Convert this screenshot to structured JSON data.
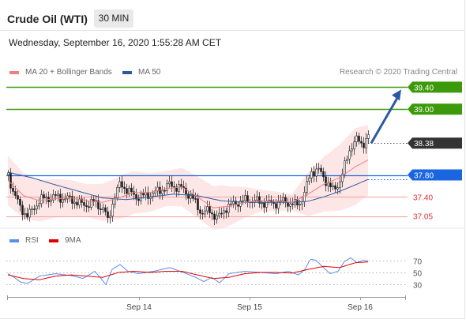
{
  "header": {
    "title": "Crude Oil (WTI)",
    "timeframe": "30 MIN",
    "datetime": "Wednesday, September 16, 2020 1:55:28 AM CET"
  },
  "legend": {
    "items": [
      {
        "label": "MA 20 + Bollinger Bands",
        "color": "#f08080"
      },
      {
        "label": "MA 50",
        "color": "#2c5aa0"
      }
    ],
    "credit": "Research © 2020 Trading Central"
  },
  "rsi_legend": {
    "items": [
      {
        "label": "RSI",
        "color": "#5b8def"
      },
      {
        "label": "9MA",
        "color": "#e00000"
      }
    ]
  },
  "chart_data": {
    "type": "line",
    "levels": [
      {
        "value": 39.4,
        "label": "39.40",
        "color": "#3c9a0a",
        "style": "badge"
      },
      {
        "value": 39.0,
        "label": "39.00",
        "color": "#3c9a0a",
        "style": "badge"
      },
      {
        "value": 38.38,
        "label": "38.38",
        "color": "#333333",
        "style": "current"
      },
      {
        "value": 37.8,
        "label": "37.80",
        "color": "#1a66e0",
        "style": "badge"
      },
      {
        "value": 37.4,
        "label": "37.40",
        "color": "#e03030",
        "style": "text"
      },
      {
        "value": 37.05,
        "label": "37.05",
        "color": "#e03030",
        "style": "text"
      }
    ],
    "price_range": [
      36.9,
      39.55
    ],
    "x_ticks": [
      "Sep 14",
      "Sep 15",
      "Sep 16"
    ],
    "price_key": [
      [
        0,
        37.8
      ],
      [
        5,
        37.55
      ],
      [
        15,
        37.2
      ],
      [
        25,
        37.05
      ],
      [
        40,
        37.35
      ],
      [
        60,
        37.4
      ],
      [
        80,
        37.35
      ],
      [
        95,
        37.25
      ],
      [
        110,
        37.3
      ],
      [
        122,
        37.15
      ],
      [
        126,
        36.95
      ],
      [
        133,
        37.35
      ],
      [
        142,
        37.65
      ],
      [
        152,
        37.5
      ],
      [
        162,
        37.4
      ],
      [
        175,
        37.42
      ],
      [
        190,
        37.5
      ],
      [
        205,
        37.62
      ],
      [
        220,
        37.55
      ],
      [
        232,
        37.4
      ],
      [
        245,
        37.1
      ],
      [
        255,
        37.15
      ],
      [
        265,
        37.0
      ],
      [
        275,
        37.2
      ],
      [
        290,
        37.3
      ],
      [
        305,
        37.35
      ],
      [
        320,
        37.3
      ],
      [
        335,
        37.28
      ],
      [
        350,
        37.32
      ],
      [
        362,
        37.25
      ],
      [
        370,
        37.3
      ],
      [
        377,
        37.55
      ],
      [
        383,
        37.85
      ],
      [
        392,
        37.9
      ],
      [
        402,
        37.7
      ],
      [
        412,
        37.5
      ],
      [
        420,
        37.7
      ],
      [
        427,
        38.0
      ],
      [
        433,
        38.3
      ],
      [
        440,
        38.45
      ],
      [
        448,
        38.35
      ],
      [
        455,
        38.5
      ],
      [
        460,
        38.55
      ],
      [
        466,
        38.38
      ]
    ],
    "ma50_key": [
      [
        0,
        37.85
      ],
      [
        30,
        37.75
      ],
      [
        60,
        37.62
      ],
      [
        90,
        37.5
      ],
      [
        120,
        37.38
      ],
      [
        150,
        37.35
      ],
      [
        180,
        37.4
      ],
      [
        210,
        37.45
      ],
      [
        240,
        37.42
      ],
      [
        270,
        37.33
      ],
      [
        300,
        37.3
      ],
      [
        330,
        37.3
      ],
      [
        360,
        37.3
      ],
      [
        380,
        37.32
      ],
      [
        400,
        37.4
      ],
      [
        420,
        37.5
      ],
      [
        440,
        37.62
      ],
      [
        466,
        37.78
      ]
    ],
    "ma20_key": [
      [
        0,
        37.7
      ],
      [
        20,
        37.42
      ],
      [
        40,
        37.33
      ],
      [
        60,
        37.37
      ],
      [
        80,
        37.38
      ],
      [
        100,
        37.33
      ],
      [
        120,
        37.3
      ],
      [
        140,
        37.38
      ],
      [
        160,
        37.48
      ],
      [
        180,
        37.48
      ],
      [
        200,
        37.55
      ],
      [
        220,
        37.58
      ],
      [
        240,
        37.4
      ],
      [
        260,
        37.2
      ],
      [
        280,
        37.23
      ],
      [
        300,
        37.3
      ],
      [
        320,
        37.33
      ],
      [
        340,
        37.32
      ],
      [
        360,
        37.3
      ],
      [
        380,
        37.45
      ],
      [
        400,
        37.63
      ],
      [
        420,
        37.75
      ],
      [
        440,
        37.95
      ],
      [
        466,
        38.15
      ]
    ],
    "bb_width_key": [
      [
        0,
        0.45
      ],
      [
        40,
        0.38
      ],
      [
        100,
        0.3
      ],
      [
        150,
        0.4
      ],
      [
        200,
        0.32
      ],
      [
        240,
        0.38
      ],
      [
        270,
        0.4
      ],
      [
        320,
        0.2
      ],
      [
        360,
        0.15
      ],
      [
        380,
        0.4
      ],
      [
        410,
        0.55
      ],
      [
        440,
        0.7
      ],
      [
        466,
        0.6
      ]
    ],
    "rsi": {
      "range": [
        15,
        85
      ],
      "ticks": [
        70,
        50,
        30
      ],
      "rsi_key": [
        [
          0,
          48
        ],
        [
          8,
          42
        ],
        [
          16,
          34
        ],
        [
          25,
          32
        ],
        [
          40,
          44
        ],
        [
          60,
          48
        ],
        [
          80,
          45
        ],
        [
          95,
          40
        ],
        [
          110,
          52
        ],
        [
          118,
          40
        ],
        [
          124,
          30
        ],
        [
          132,
          55
        ],
        [
          142,
          63
        ],
        [
          152,
          52
        ],
        [
          165,
          48
        ],
        [
          185,
          52
        ],
        [
          205,
          58
        ],
        [
          222,
          50
        ],
        [
          238,
          42
        ],
        [
          248,
          35
        ],
        [
          258,
          42
        ],
        [
          268,
          33
        ],
        [
          280,
          48
        ],
        [
          300,
          52
        ],
        [
          320,
          50
        ],
        [
          340,
          48
        ],
        [
          355,
          52
        ],
        [
          368,
          46
        ],
        [
          376,
          55
        ],
        [
          383,
          72
        ],
        [
          390,
          70
        ],
        [
          398,
          60
        ],
        [
          408,
          48
        ],
        [
          418,
          52
        ],
        [
          426,
          68
        ],
        [
          434,
          74
        ],
        [
          442,
          66
        ],
        [
          450,
          70
        ],
        [
          458,
          68
        ],
        [
          466,
          62
        ]
      ],
      "ma_key": [
        [
          0,
          46
        ],
        [
          20,
          40
        ],
        [
          40,
          38
        ],
        [
          60,
          44
        ],
        [
          80,
          46
        ],
        [
          100,
          44
        ],
        [
          120,
          42
        ],
        [
          140,
          50
        ],
        [
          160,
          52
        ],
        [
          180,
          50
        ],
        [
          200,
          52
        ],
        [
          220,
          52
        ],
        [
          240,
          46
        ],
        [
          260,
          40
        ],
        [
          280,
          42
        ],
        [
          300,
          48
        ],
        [
          320,
          50
        ],
        [
          340,
          50
        ],
        [
          360,
          49
        ],
        [
          380,
          55
        ],
        [
          400,
          60
        ],
        [
          420,
          58
        ],
        [
          440,
          66
        ],
        [
          466,
          68
        ]
      ]
    }
  }
}
